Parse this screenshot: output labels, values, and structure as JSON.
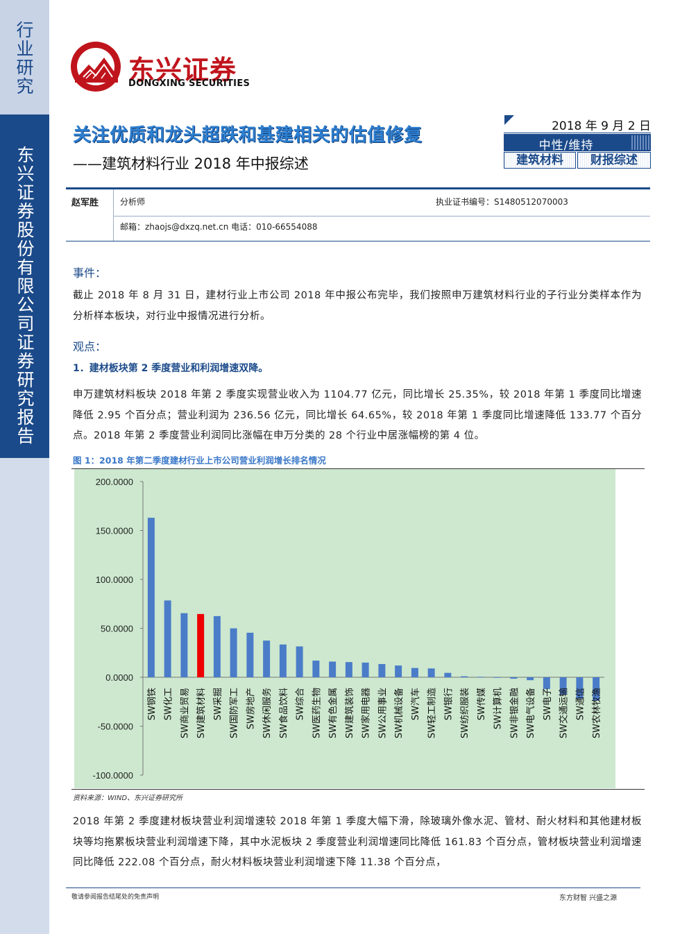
{
  "sidebar": {
    "category": "行业研究",
    "company": "东兴证券股份有限公司证券研究报告"
  },
  "logo": {
    "cn": "东兴证券",
    "en": "DONGXING SECURITIES"
  },
  "report": {
    "title": "关注优质和龙头超跌和基建相关的估值修复",
    "subtitle": "——建筑材料行业 2018 年中报综述",
    "date": "2018 年 9 月 2 日",
    "rating": "中性/维持",
    "tags": [
      "建筑材料",
      "财报综述"
    ]
  },
  "analyst": {
    "name": "赵军胜",
    "role": "分析师",
    "cert": "执业证书编号：S1480512070003",
    "contact": "邮箱：zhaojs@dxzq.net.cn 电话：010-66554088"
  },
  "body": {
    "event_heading": "事件：",
    "event_text": "截止 2018 年 8 月 31 日，建材行业上市公司 2018 年中报公布完毕，我们按照申万建筑材料行业的子行业分类样本作为分析样本板块，对行业中报情况进行分析。",
    "view_heading": "观点：",
    "point1": "1．建材板块第 2 季度营业和利润增速双降。",
    "para2": "申万建筑材料板块 2018 年第 2 季度实现营业收入为 1104.77 亿元，同比增长 25.35%，较 2018 年第 1 季度同比增速降低 2.95 个百分点；营业利润为 236.56 亿元，同比增长 64.65%，较 2018 年第 1 季度同比增速降低 133.77 个百分点。2018 年第 2 季度营业利润同比涨幅在申万分类的 28 个行业中居涨幅榜的第 4 位。",
    "figure_title": "图 1：2018 年第二季度建材行业上市公司营业利润增长排名情况",
    "source": "资料来源：WIND、东兴证券研究所",
    "para3": "2018 年第 2 季度建材板块营业利润增速较 2018 年第 1 季度大幅下滑，除玻璃外像水泥、管材、耐火材料和其他建材板块等均拖累板块营业利润增速下降，其中水泥板块 2 季度营业利润增速同比降低 161.83 个百分点，管材板块营业利润增速同比降低 222.08 个百分点，耐火材料板块营业利润增速下降 11.38 个百分点，"
  },
  "footer": {
    "left": "敬请参阅报告结尾处的免责声明",
    "right": "东方财智  兴盛之源"
  },
  "colors": {
    "brand_blue": "#1b4a8a",
    "logo_red": "#c0141c",
    "bar_blue": "#4a7cc8",
    "bar_highlight": "#ee0000",
    "plot_bg": "#cde8cf"
  },
  "chart_data": {
    "type": "bar",
    "ylim": [
      -100,
      200
    ],
    "yticks": [
      "200.0000",
      "150.0000",
      "100.0000",
      "50.0000",
      "0.0000",
      "-50.0000",
      "-100.0000"
    ],
    "categories": [
      "SW钢铁",
      "SW化工",
      "SW商业贸易",
      "SW建筑材料",
      "SW采掘",
      "SW国防军工",
      "SW房地产",
      "SW休闲服务",
      "SW食品饮料",
      "SW综合",
      "SW医药生物",
      "SW有色金属",
      "SW建筑装饰",
      "SW家用电器",
      "SW公用事业",
      "SW机械设备",
      "SW汽车",
      "SW轻工制造",
      "SW银行",
      "SW纺织服装",
      "SW传媒",
      "SW计算机",
      "SW非银金融",
      "SW电气设备",
      "SW电子",
      "SW交通运输",
      "SW通信",
      "SW农林牧渔"
    ],
    "values": [
      163,
      78.5,
      65.5,
      64.65,
      62.5,
      50,
      45.5,
      37.5,
      33.5,
      31.5,
      17,
      16,
      15.5,
      15,
      13.5,
      12,
      9.5,
      9,
      4.5,
      1,
      0.5,
      -0.5,
      -1.5,
      -3,
      -12,
      -18,
      -22,
      -24
    ],
    "highlight": "SW建筑材料"
  }
}
